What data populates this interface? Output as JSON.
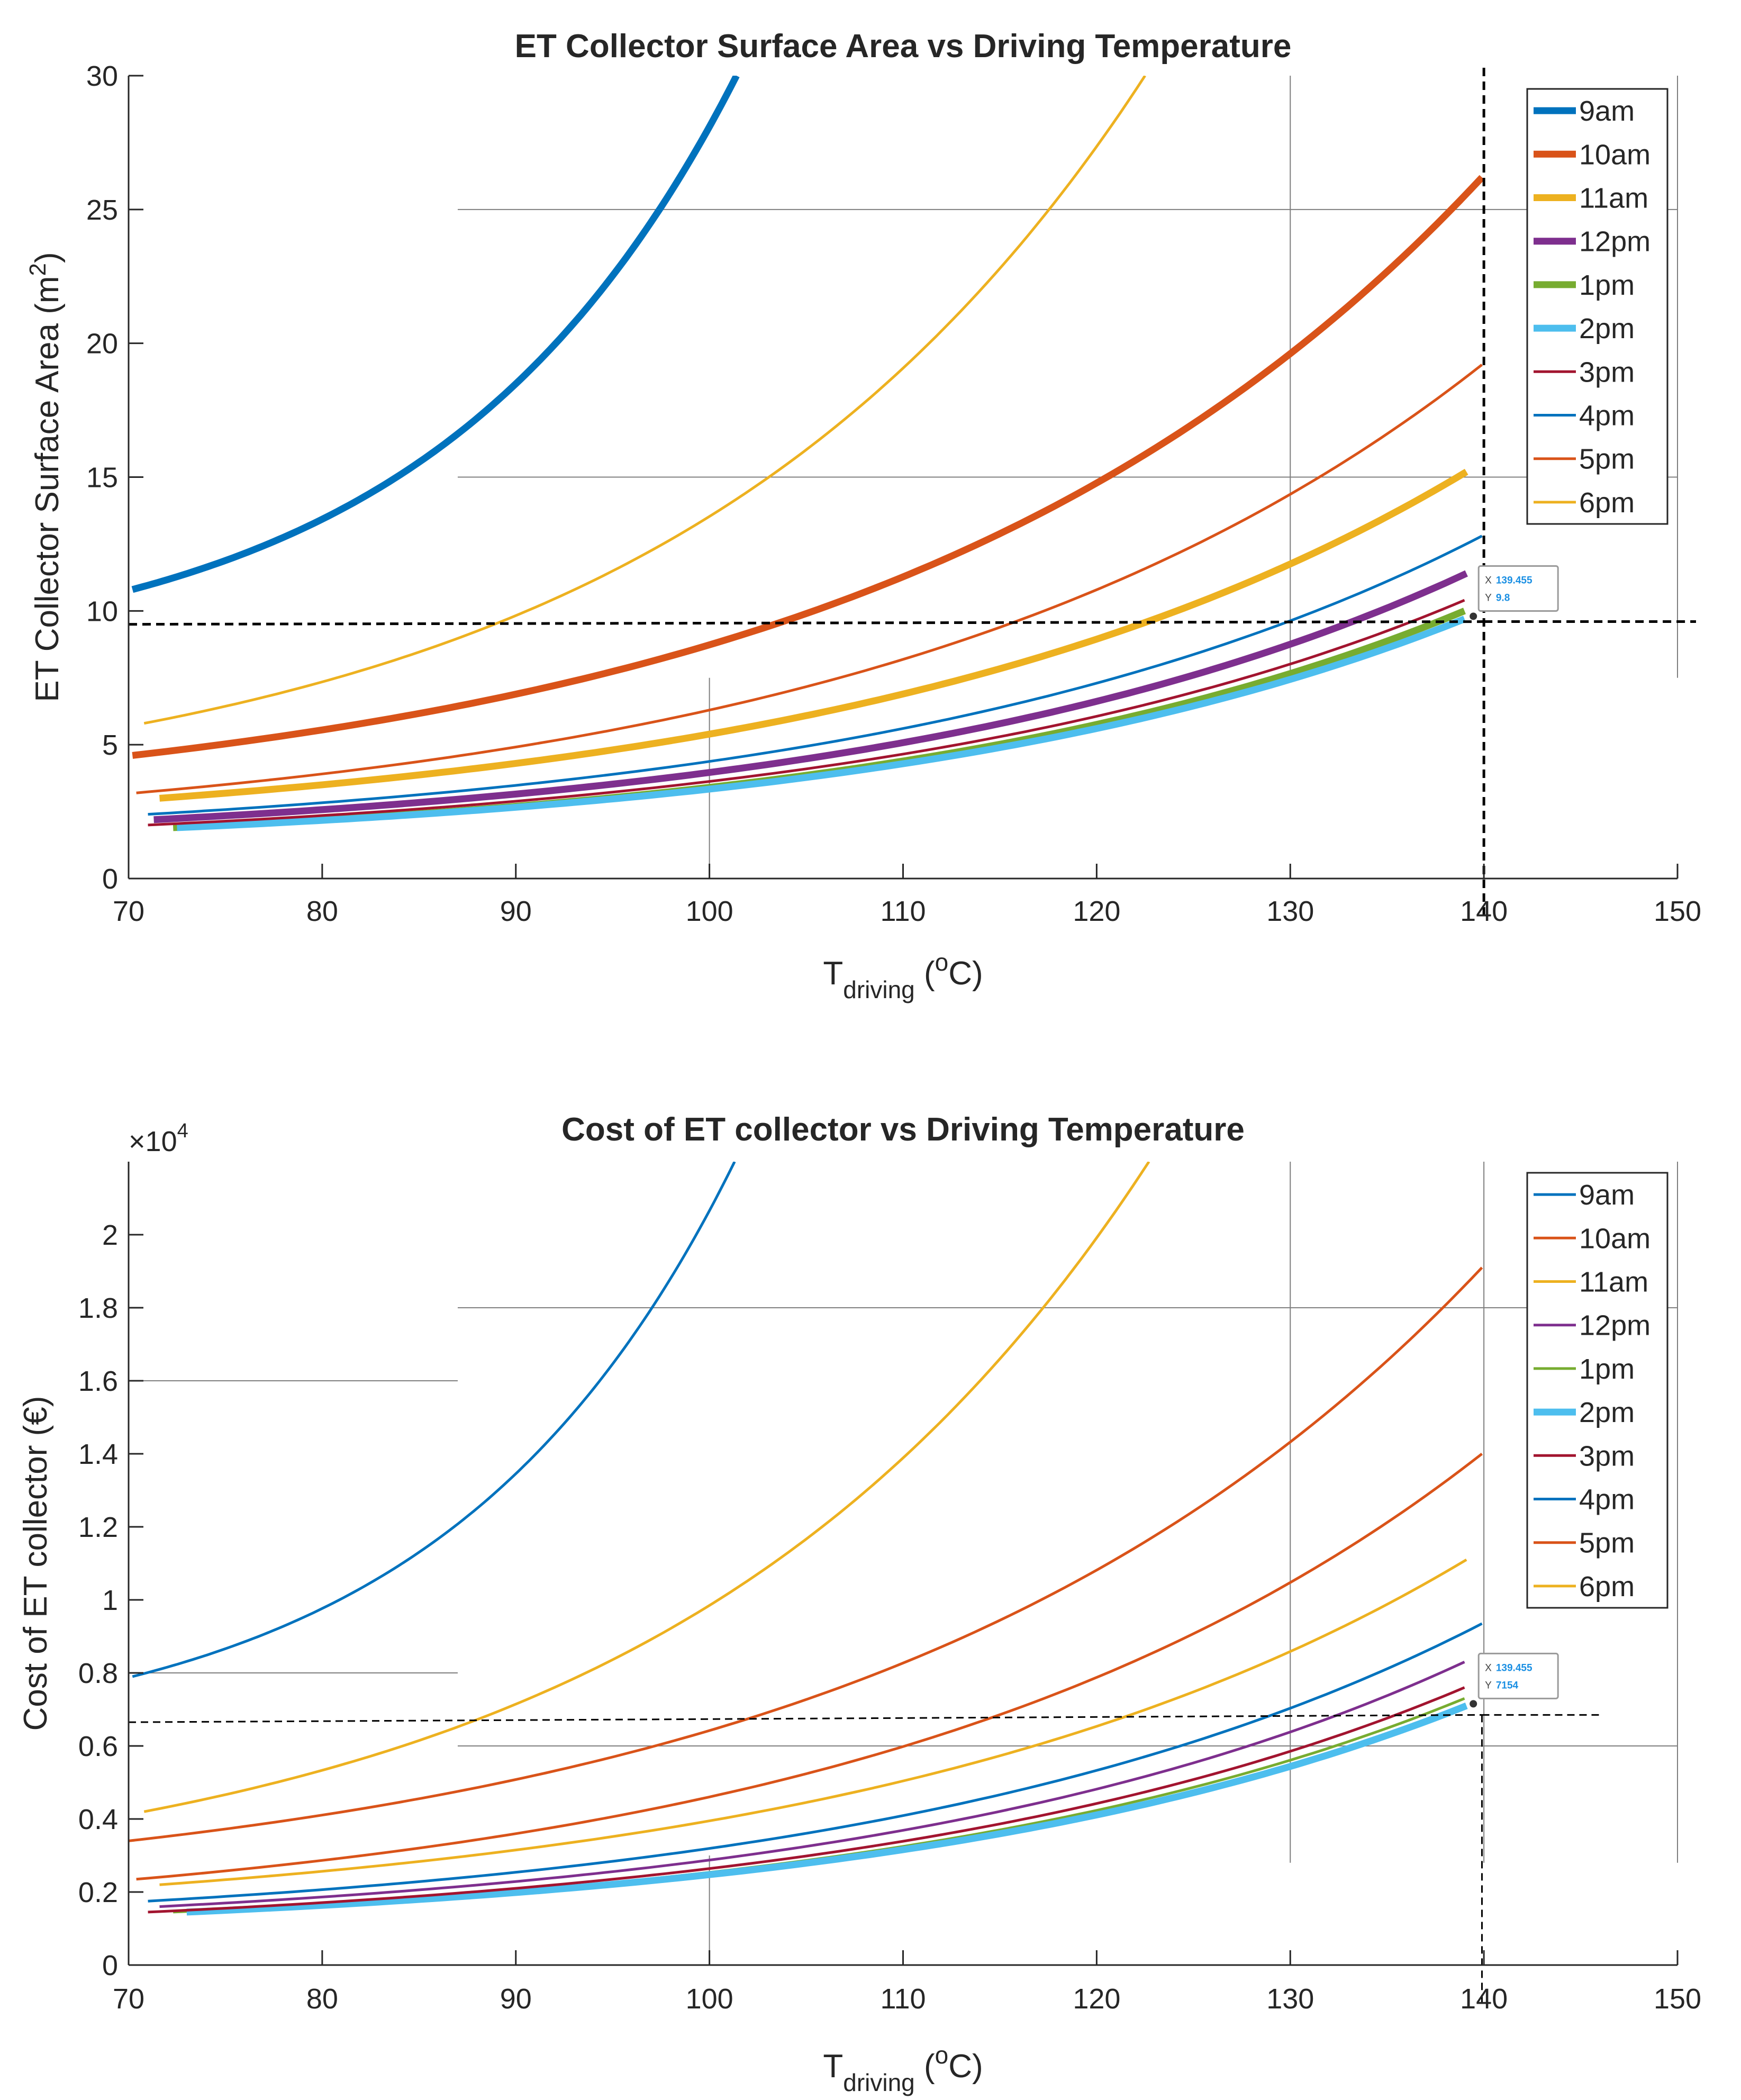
{
  "figure": {
    "colors": {
      "series": [
        "#0072BD",
        "#D95319",
        "#EDB120",
        "#7E2F8E",
        "#77AC30",
        "#4DBEEE",
        "#A2142F",
        "#0072BD",
        "#D95319",
        "#EDB120"
      ],
      "axis": "#262626",
      "grid": "#7f7f7f",
      "datatip_text": "#1A8FE3",
      "guide": "#000000"
    }
  },
  "chart_data": [
    {
      "type": "line",
      "title": "ET Collector Surface Area vs Driving Temperature",
      "xlabel": {
        "main": "T",
        "sub": "driving",
        "unit_pre": " (",
        "unit_sup": "o",
        "unit_post": "C)"
      },
      "ylabel": {
        "main": "ET Collector Surface Area (m",
        "sup": "2",
        "post": ")"
      },
      "xlim": [
        70,
        150
      ],
      "ylim": [
        0,
        30
      ],
      "xticks": [
        70,
        80,
        90,
        100,
        110,
        120,
        130,
        140,
        150
      ],
      "yticks": [
        0,
        5,
        10,
        15,
        20,
        25,
        30
      ],
      "ytick_labels": [
        "0",
        "5",
        "10",
        "15",
        "20",
        "25",
        "30"
      ],
      "exponent_label": "",
      "legend_position": "top-right",
      "series": [
        {
          "name": "9am",
          "x": [
            70.2,
            101.4
          ],
          "y": [
            10.8,
            30.0
          ],
          "curve": 0.5,
          "width": "thick"
        },
        {
          "name": "10am",
          "x": [
            70.2,
            139.9
          ],
          "y": [
            4.6,
            26.2
          ],
          "curve": 0.56,
          "width": "thick"
        },
        {
          "name": "11am",
          "x": [
            71.6,
            139.1
          ],
          "y": [
            3.0,
            15.2
          ],
          "curve": 0.53,
          "width": "thick"
        },
        {
          "name": "12pm",
          "x": [
            71.3,
            139.1
          ],
          "y": [
            2.2,
            11.4
          ],
          "curve": 0.55,
          "width": "thick"
        },
        {
          "name": "1pm",
          "x": [
            72.3,
            139.0
          ],
          "y": [
            1.9,
            10.0
          ],
          "curve": 0.55,
          "width": "thick"
        },
        {
          "name": "2pm",
          "x": [
            72.5,
            139.0
          ],
          "y": [
            1.9,
            9.7
          ],
          "curve": 0.55,
          "width": "thick"
        },
        {
          "name": "3pm",
          "x": [
            71.0,
            139.0
          ],
          "y": [
            2.0,
            10.4
          ],
          "curve": 0.55,
          "width": "thin"
        },
        {
          "name": "4pm",
          "x": [
            71.0,
            139.9
          ],
          "y": [
            2.4,
            12.8
          ],
          "curve": 0.55,
          "width": "thin"
        },
        {
          "name": "5pm",
          "x": [
            70.4,
            139.9
          ],
          "y": [
            3.2,
            19.2
          ],
          "curve": 0.55,
          "width": "thin"
        },
        {
          "name": "6pm",
          "x": [
            70.8,
            122.5
          ],
          "y": [
            5.8,
            30.0
          ],
          "curve": 0.52,
          "width": "thin"
        }
      ],
      "guides": {
        "x": 140.0,
        "y": 9.6,
        "y_left": 9.5
      },
      "datatip": {
        "point": [
          139.455,
          9.8
        ],
        "x_label": "X",
        "x_value": "139.455",
        "y_label": "Y",
        "y_value": "9.8"
      },
      "grid_segments": [
        {
          "orient": "h",
          "at": 25,
          "from": 87,
          "to": 150
        },
        {
          "orient": "h",
          "at": 15,
          "from": 87,
          "to": 150
        },
        {
          "orient": "v",
          "at": 100,
          "from": 0,
          "to": 7.5
        },
        {
          "orient": "v",
          "at": 130,
          "from": 7.5,
          "to": 30
        },
        {
          "orient": "v",
          "at": 150,
          "from": 7.5,
          "to": 30
        }
      ]
    },
    {
      "type": "line",
      "title": "Cost of ET collector vs Driving Temperature",
      "xlabel": {
        "main": "T",
        "sub": "driving",
        "unit_pre": " (",
        "unit_sup": "o",
        "unit_post": "C)"
      },
      "ylabel": {
        "main": "Cost of ET collector (€)",
        "sup": "",
        "post": ""
      },
      "xlim": [
        70,
        150
      ],
      "ylim": [
        0,
        22000
      ],
      "xticks": [
        70,
        80,
        90,
        100,
        110,
        120,
        130,
        140,
        150
      ],
      "yticks": [
        0,
        2000,
        4000,
        6000,
        8000,
        10000,
        12000,
        14000,
        16000,
        18000,
        20000
      ],
      "ytick_labels": [
        "0",
        "0.2",
        "0.4",
        "0.6",
        "0.8",
        "1",
        "1.2",
        "1.4",
        "1.6",
        "1.8",
        "2"
      ],
      "exponent_label": "×10",
      "exponent_sup": "4",
      "legend_position": "top-right",
      "series": [
        {
          "name": "9am",
          "x": [
            70.2,
            101.3
          ],
          "y": [
            7900,
            22000
          ],
          "curve": 0.52,
          "width": "thin"
        },
        {
          "name": "10am",
          "x": [
            70.0,
            139.9
          ],
          "y": [
            3400,
            19100
          ],
          "curve": 0.56,
          "width": "thin"
        },
        {
          "name": "11am",
          "x": [
            70.8,
            122.7
          ],
          "y": [
            4200,
            22000
          ],
          "curve": 0.52,
          "width": "thin"
        },
        {
          "name": "12pm",
          "x": [
            71.6,
            139.0
          ],
          "y": [
            1600,
            8300
          ],
          "curve": 0.55,
          "width": "thin"
        },
        {
          "name": "1pm",
          "x": [
            72.3,
            139.0
          ],
          "y": [
            1450,
            7300
          ],
          "curve": 0.55,
          "width": "thin"
        },
        {
          "name": "2pm",
          "x": [
            73.0,
            139.1
          ],
          "y": [
            1450,
            7100
          ],
          "curve": 0.55,
          "width": "thick"
        },
        {
          "name": "3pm",
          "x": [
            71.0,
            139.0
          ],
          "y": [
            1450,
            7600
          ],
          "curve": 0.55,
          "width": "thin"
        },
        {
          "name": "4pm",
          "x": [
            71.0,
            139.9
          ],
          "y": [
            1750,
            9350
          ],
          "curve": 0.55,
          "width": "thin"
        },
        {
          "name": "5pm",
          "x": [
            70.4,
            139.9
          ],
          "y": [
            2350,
            14000
          ],
          "curve": 0.55,
          "width": "thin"
        },
        {
          "name": "6pm",
          "x": [
            71.6,
            139.1
          ],
          "y": [
            2200,
            11100
          ],
          "curve": 0.53,
          "width": "thin"
        }
      ],
      "guides": {
        "x": 139.9,
        "y": 6850,
        "y_left": 6650,
        "x_right": 146
      },
      "datatip": {
        "point": [
          139.455,
          7154
        ],
        "x_label": "X",
        "x_value": "139.455",
        "y_label": "Y",
        "y_value": "7154"
      },
      "grid_segments": [
        {
          "orient": "h",
          "at": 18000,
          "from": 87,
          "to": 150
        },
        {
          "orient": "h",
          "at": 16000,
          "from": 70,
          "to": 87
        },
        {
          "orient": "h",
          "at": 8000,
          "from": 70,
          "to": 87
        },
        {
          "orient": "h",
          "at": 6000,
          "from": 87,
          "to": 150
        },
        {
          "orient": "v",
          "at": 100,
          "from": 0,
          "to": 3000
        },
        {
          "orient": "v",
          "at": 130,
          "from": 2800,
          "to": 22000
        },
        {
          "orient": "v",
          "at": 140,
          "from": 2800,
          "to": 22000
        },
        {
          "orient": "v",
          "at": 150,
          "from": 2800,
          "to": 22000
        }
      ]
    }
  ]
}
